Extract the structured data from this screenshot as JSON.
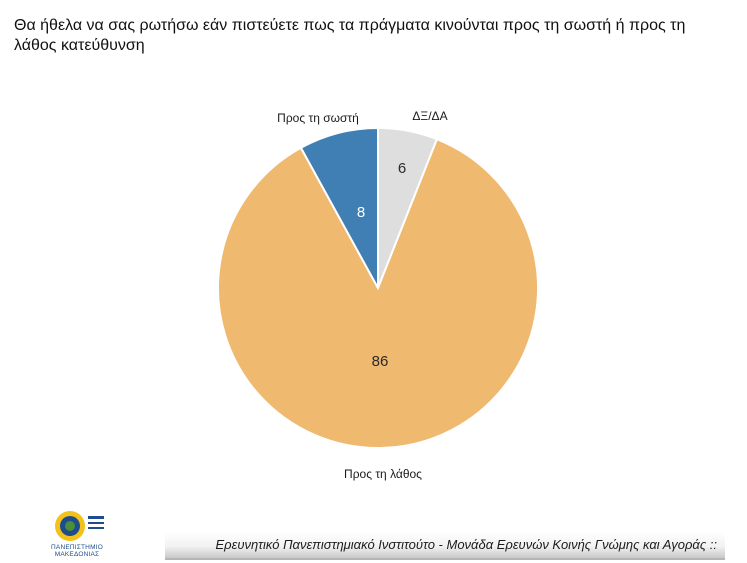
{
  "title": "Θα ήθελα να σας ρωτήσω εάν πιστεύετε πως τα πράγματα κινούνται προς τη σωστή ή προς τη λάθος κατεύθυνση",
  "chart_data": {
    "type": "pie",
    "slices": [
      {
        "label": "ΔΞ/ΔΑ",
        "value": 6,
        "color": "#dedede"
      },
      {
        "label": "Προς τη λάθος",
        "value": 86,
        "color": "#efb970"
      },
      {
        "label": "Προς τη σωστή",
        "value": 8,
        "color": "#3f7fb4"
      }
    ]
  },
  "footer": {
    "text": "Ερευνητικό Πανεπιστημιακό Ινστιτούτο - Μονάδα Ερευνών Κοινής Γνώμης και Αγοράς ::"
  },
  "logo": {
    "caption": "ΠΑΝΕΠΙΣΤΗΜΙΟ ΜΑΚΕΔΟΝΙΑΣ"
  }
}
